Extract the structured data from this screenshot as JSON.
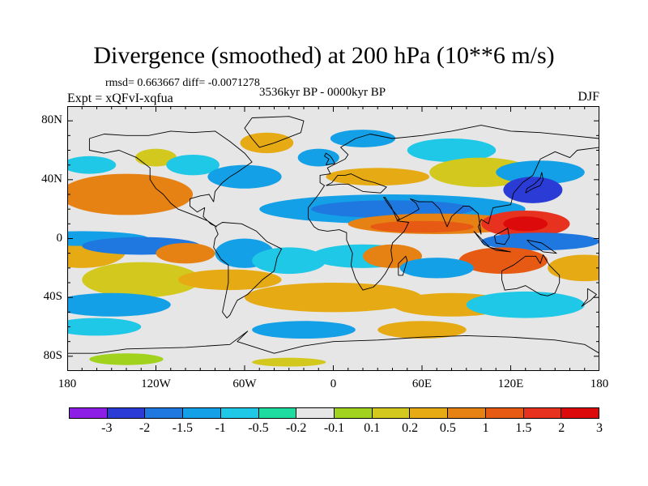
{
  "header": {
    "title": "Divergence (smoothed) at 200 hPa (10**6 m/s)",
    "stats": "rmsd= 0.663667 diff= -0.0071278",
    "experiment": "Expt = xQFvI-xqfua",
    "period": "3536kyr BP - 0000kyr BP",
    "season": "DJF"
  },
  "axes": {
    "lat_labels": [
      "80N",
      "40N",
      "0",
      "40S",
      "80S"
    ],
    "lat_values": [
      80,
      40,
      0,
      -40,
      -80
    ],
    "lon_labels": [
      "180",
      "120W",
      "60W",
      "0",
      "60E",
      "120E",
      "180"
    ],
    "lon_values": [
      -180,
      -120,
      -60,
      0,
      60,
      120,
      180
    ],
    "lat_range": [
      -90,
      90
    ],
    "lon_range": [
      -180,
      180
    ]
  },
  "colorbar": {
    "colors": [
      "#8c1ee6",
      "#2b3cd6",
      "#1e78e0",
      "#14a0e6",
      "#1ec8e6",
      "#1edca0",
      "#e6e6e6",
      "#a0d21e",
      "#d2c81e",
      "#e6aa14",
      "#e68214",
      "#e65a14",
      "#e6321e",
      "#dc0a0a"
    ],
    "labels": [
      "-3",
      "-2",
      "-1.5",
      "-1",
      "-0.5",
      "-0.2",
      "-0.1",
      "0.1",
      "0.2",
      "0.5",
      "1",
      "1.5",
      "2",
      "3"
    ]
  },
  "field_blobs": [
    {
      "lon": -150,
      "lat": 32,
      "rx": 25,
      "ry": 10,
      "level": 12
    },
    {
      "lon": -140,
      "lat": 30,
      "rx": 45,
      "ry": 14,
      "level": 10
    },
    {
      "lon": -165,
      "lat": 50,
      "rx": 18,
      "ry": 6,
      "level": 4
    },
    {
      "lon": -120,
      "lat": 55,
      "rx": 14,
      "ry": 6,
      "level": 8
    },
    {
      "lon": -95,
      "lat": 50,
      "rx": 18,
      "ry": 7,
      "level": 4
    },
    {
      "lon": -60,
      "lat": 42,
      "rx": 25,
      "ry": 8,
      "level": 3
    },
    {
      "lon": -45,
      "lat": 65,
      "rx": 18,
      "ry": 7,
      "level": 9
    },
    {
      "lon": -10,
      "lat": 55,
      "rx": 14,
      "ry": 6,
      "level": 3
    },
    {
      "lon": 20,
      "lat": 68,
      "rx": 22,
      "ry": 6,
      "level": 3
    },
    {
      "lon": 80,
      "lat": 60,
      "rx": 30,
      "ry": 8,
      "level": 4
    },
    {
      "lon": 100,
      "lat": 45,
      "rx": 35,
      "ry": 10,
      "level": 8
    },
    {
      "lon": 140,
      "lat": 45,
      "rx": 30,
      "ry": 8,
      "level": 3
    },
    {
      "lon": 135,
      "lat": 33,
      "rx": 20,
      "ry": 9,
      "level": 1
    },
    {
      "lon": 30,
      "lat": 42,
      "rx": 35,
      "ry": 6,
      "level": 9
    },
    {
      "lon": 40,
      "lat": 20,
      "rx": 90,
      "ry": 10,
      "level": 3
    },
    {
      "lon": 40,
      "lat": 20,
      "rx": 55,
      "ry": 6,
      "level": 2
    },
    {
      "lon": 70,
      "lat": 10,
      "rx": 60,
      "ry": 7,
      "level": 10
    },
    {
      "lon": 60,
      "lat": 8,
      "rx": 35,
      "ry": 4,
      "level": 11
    },
    {
      "lon": 130,
      "lat": 10,
      "rx": 30,
      "ry": 9,
      "level": 12
    },
    {
      "lon": 130,
      "lat": 10,
      "rx": 15,
      "ry": 5,
      "level": 13
    },
    {
      "lon": 140,
      "lat": -2,
      "rx": 40,
      "ry": 6,
      "level": 2
    },
    {
      "lon": 115,
      "lat": -15,
      "rx": 30,
      "ry": 9,
      "level": 11
    },
    {
      "lon": 170,
      "lat": -20,
      "rx": 25,
      "ry": 9,
      "level": 9
    },
    {
      "lon": -170,
      "lat": -8,
      "rx": 30,
      "ry": 12,
      "level": 9
    },
    {
      "lon": -170,
      "lat": 0,
      "rx": 45,
      "ry": 5,
      "level": 3
    },
    {
      "lon": -130,
      "lat": -5,
      "rx": 40,
      "ry": 6,
      "level": 2
    },
    {
      "lon": -100,
      "lat": -10,
      "rx": 20,
      "ry": 7,
      "level": 10
    },
    {
      "lon": -130,
      "lat": -28,
      "rx": 40,
      "ry": 12,
      "level": 8
    },
    {
      "lon": -60,
      "lat": -10,
      "rx": 20,
      "ry": 10,
      "level": 3
    },
    {
      "lon": -70,
      "lat": -28,
      "rx": 35,
      "ry": 7,
      "level": 9
    },
    {
      "lon": -30,
      "lat": -15,
      "rx": 25,
      "ry": 9,
      "level": 4
    },
    {
      "lon": 20,
      "lat": -12,
      "rx": 35,
      "ry": 8,
      "level": 4
    },
    {
      "lon": 40,
      "lat": -12,
      "rx": 20,
      "ry": 8,
      "level": 10
    },
    {
      "lon": 70,
      "lat": -20,
      "rx": 25,
      "ry": 7,
      "level": 3
    },
    {
      "lon": 0,
      "lat": -40,
      "rx": 60,
      "ry": 10,
      "level": 9
    },
    {
      "lon": 80,
      "lat": -45,
      "rx": 40,
      "ry": 8,
      "level": 9
    },
    {
      "lon": 130,
      "lat": -45,
      "rx": 40,
      "ry": 9,
      "level": 4
    },
    {
      "lon": -150,
      "lat": -45,
      "rx": 40,
      "ry": 8,
      "level": 3
    },
    {
      "lon": -160,
      "lat": -60,
      "rx": 30,
      "ry": 6,
      "level": 4
    },
    {
      "lon": -20,
      "lat": -62,
      "rx": 35,
      "ry": 6,
      "level": 3
    },
    {
      "lon": 60,
      "lat": -62,
      "rx": 30,
      "ry": 6,
      "level": 9
    },
    {
      "lon": -140,
      "lat": -82,
      "rx": 25,
      "ry": 4,
      "level": 7
    },
    {
      "lon": -30,
      "lat": -84,
      "rx": 25,
      "ry": 3,
      "level": 8
    }
  ],
  "coastlines": [
    {
      "name": "north-america",
      "points": [
        [
          -165,
          68
        ],
        [
          -155,
          71
        ],
        [
          -140,
          70
        ],
        [
          -125,
          70
        ],
        [
          -110,
          73
        ],
        [
          -95,
          72
        ],
        [
          -80,
          73
        ],
        [
          -70,
          66
        ],
        [
          -60,
          58
        ],
        [
          -55,
          52
        ],
        [
          -65,
          45
        ],
        [
          -70,
          42
        ],
        [
          -75,
          38
        ],
        [
          -80,
          32
        ],
        [
          -81,
          25
        ],
        [
          -84,
          30
        ],
        [
          -90,
          29
        ],
        [
          -97,
          27
        ],
        [
          -97,
          22
        ],
        [
          -92,
          18
        ],
        [
          -87,
          21
        ],
        [
          -88,
          15
        ],
        [
          -83,
          10
        ],
        [
          -79,
          8
        ],
        [
          -85,
          12
        ],
        [
          -92,
          15
        ],
        [
          -105,
          20
        ],
        [
          -110,
          24
        ],
        [
          -115,
          30
        ],
        [
          -120,
          34
        ],
        [
          -124,
          40
        ],
        [
          -124,
          48
        ],
        [
          -133,
          55
        ],
        [
          -145,
          60
        ],
        [
          -155,
          58
        ],
        [
          -165,
          60
        ],
        [
          -165,
          68
        ]
      ]
    },
    {
      "name": "greenland",
      "points": [
        [
          -55,
          82
        ],
        [
          -30,
          83
        ],
        [
          -20,
          80
        ],
        [
          -22,
          72
        ],
        [
          -40,
          65
        ],
        [
          -50,
          62
        ],
        [
          -55,
          68
        ],
        [
          -60,
          75
        ],
        [
          -55,
          82
        ]
      ]
    },
    {
      "name": "south-america",
      "points": [
        [
          -80,
          8
        ],
        [
          -75,
          11
        ],
        [
          -62,
          10
        ],
        [
          -52,
          5
        ],
        [
          -45,
          -2
        ],
        [
          -35,
          -7
        ],
        [
          -38,
          -13
        ],
        [
          -40,
          -22
        ],
        [
          -48,
          -28
        ],
        [
          -55,
          -35
        ],
        [
          -58,
          -38
        ],
        [
          -65,
          -42
        ],
        [
          -67,
          -46
        ],
        [
          -70,
          -52
        ],
        [
          -72,
          -54
        ],
        [
          -75,
          -50
        ],
        [
          -73,
          -40
        ],
        [
          -71,
          -30
        ],
        [
          -71,
          -18
        ],
        [
          -76,
          -14
        ],
        [
          -81,
          -6
        ],
        [
          -80,
          0
        ],
        [
          -78,
          3
        ],
        [
          -80,
          8
        ]
      ]
    },
    {
      "name": "africa-eurasia",
      "points": [
        [
          -17,
          14
        ],
        [
          -17,
          21
        ],
        [
          -10,
          30
        ],
        [
          -6,
          36
        ],
        [
          -9,
          38
        ],
        [
          -9,
          43
        ],
        [
          -2,
          44
        ],
        [
          -4,
          48
        ],
        [
          2,
          51
        ],
        [
          8,
          54
        ],
        [
          10,
          57
        ],
        [
          5,
          62
        ],
        [
          15,
          68
        ],
        [
          25,
          71
        ],
        [
          40,
          68
        ],
        [
          60,
          70
        ],
        [
          80,
          73
        ],
        [
          100,
          77
        ],
        [
          120,
          73
        ],
        [
          140,
          72
        ],
        [
          160,
          70
        ],
        [
          180,
          68
        ],
        [
          180,
          62
        ],
        [
          165,
          60
        ],
        [
          160,
          55
        ],
        [
          150,
          59
        ],
        [
          140,
          54
        ],
        [
          135,
          43
        ],
        [
          128,
          38
        ],
        [
          122,
          31
        ],
        [
          120,
          23
        ],
        [
          108,
          21
        ],
        [
          105,
          10
        ],
        [
          100,
          13
        ],
        [
          98,
          8
        ],
        [
          100,
          3
        ],
        [
          98,
          17
        ],
        [
          92,
          22
        ],
        [
          88,
          22
        ],
        [
          80,
          15
        ],
        [
          77,
          8
        ],
        [
          72,
          20
        ],
        [
          67,
          25
        ],
        [
          58,
          25
        ],
        [
          52,
          27
        ],
        [
          56,
          24
        ],
        [
          58,
          20
        ],
        [
          53,
          17
        ],
        [
          45,
          13
        ],
        [
          43,
          12
        ],
        [
          51,
          11
        ],
        [
          48,
          5
        ],
        [
          40,
          -3
        ],
        [
          39,
          -8
        ],
        [
          40,
          -15
        ],
        [
          35,
          -24
        ],
        [
          32,
          -28
        ],
        [
          27,
          -33
        ],
        [
          20,
          -35
        ],
        [
          18,
          -32
        ],
        [
          15,
          -27
        ],
        [
          12,
          -18
        ],
        [
          13,
          -10
        ],
        [
          9,
          -1
        ],
        [
          9,
          4
        ],
        [
          4,
          6
        ],
        [
          -4,
          5
        ],
        [
          -10,
          6
        ],
        [
          -13,
          8
        ],
        [
          -17,
          14
        ]
      ]
    },
    {
      "name": "mediterranean",
      "points": [
        [
          -5,
          36
        ],
        [
          5,
          37
        ],
        [
          10,
          37
        ],
        [
          20,
          32
        ],
        [
          32,
          31
        ],
        [
          36,
          35
        ],
        [
          28,
          38
        ],
        [
          20,
          40
        ],
        [
          12,
          44
        ],
        [
          8,
          43
        ],
        [
          3,
          43
        ],
        [
          -1,
          38
        ],
        [
          -5,
          36
        ]
      ]
    },
    {
      "name": "arabia-red-sea",
      "points": [
        [
          35,
          28
        ],
        [
          39,
          22
        ],
        [
          43,
          13
        ],
        [
          45,
          13
        ],
        [
          42,
          17
        ],
        [
          38,
          22
        ],
        [
          34,
          28
        ],
        [
          35,
          28
        ]
      ]
    },
    {
      "name": "australia",
      "points": [
        [
          114,
          -22
        ],
        [
          122,
          -18
        ],
        [
          130,
          -12
        ],
        [
          137,
          -12
        ],
        [
          140,
          -17
        ],
        [
          142,
          -11
        ],
        [
          146,
          -18
        ],
        [
          153,
          -25
        ],
        [
          153,
          -30
        ],
        [
          150,
          -37
        ],
        [
          145,
          -39
        ],
        [
          140,
          -38
        ],
        [
          135,
          -35
        ],
        [
          130,
          -32
        ],
        [
          124,
          -34
        ],
        [
          116,
          -35
        ],
        [
          114,
          -28
        ],
        [
          114,
          -22
        ]
      ]
    },
    {
      "name": "madagascar",
      "points": [
        [
          44,
          -25
        ],
        [
          47,
          -25
        ],
        [
          50,
          -15
        ],
        [
          49,
          -12
        ],
        [
          44,
          -17
        ],
        [
          44,
          -25
        ]
      ]
    },
    {
      "name": "japan",
      "points": [
        [
          130,
          31
        ],
        [
          135,
          34
        ],
        [
          140,
          36
        ],
        [
          142,
          40
        ],
        [
          141,
          45
        ],
        [
          140,
          41
        ],
        [
          136,
          37
        ],
        [
          131,
          34
        ],
        [
          130,
          31
        ]
      ]
    },
    {
      "name": "uk",
      "points": [
        [
          -5,
          50
        ],
        [
          1,
          51
        ],
        [
          0,
          53
        ],
        [
          -2,
          56
        ],
        [
          -5,
          58
        ],
        [
          -6,
          56
        ],
        [
          -3,
          54
        ],
        [
          -5,
          50
        ]
      ]
    },
    {
      "name": "indonesia",
      "points": [
        [
          95,
          5
        ],
        [
          106,
          -6
        ],
        [
          115,
          -8
        ],
        [
          120,
          -9
        ],
        [
          110,
          -8
        ],
        [
          102,
          -4
        ],
        [
          95,
          5
        ]
      ]
    },
    {
      "name": "borneo",
      "points": [
        [
          109,
          2
        ],
        [
          118,
          7
        ],
        [
          119,
          1
        ],
        [
          116,
          -4
        ],
        [
          110,
          -3
        ],
        [
          109,
          2
        ]
      ]
    },
    {
      "name": "new-guinea",
      "points": [
        [
          131,
          -1
        ],
        [
          141,
          -3
        ],
        [
          151,
          -10
        ],
        [
          142,
          -9
        ],
        [
          134,
          -4
        ],
        [
          131,
          -1
        ]
      ]
    },
    {
      "name": "new-zealand",
      "points": [
        [
          172,
          -34
        ],
        [
          178,
          -38
        ],
        [
          174,
          -42
        ],
        [
          168,
          -46
        ],
        [
          172,
          -41
        ],
        [
          172,
          -34
        ]
      ]
    },
    {
      "name": "antarctica",
      "points": [
        [
          -180,
          -78
        ],
        [
          -160,
          -78
        ],
        [
          -140,
          -75
        ],
        [
          -100,
          -74
        ],
        [
          -70,
          -72
        ],
        [
          -58,
          -63
        ],
        [
          -65,
          -70
        ],
        [
          -40,
          -78
        ],
        [
          -20,
          -73
        ],
        [
          0,
          -70
        ],
        [
          30,
          -69
        ],
        [
          60,
          -67
        ],
        [
          90,
          -66
        ],
        [
          120,
          -67
        ],
        [
          150,
          -69
        ],
        [
          170,
          -72
        ],
        [
          180,
          -78
        ]
      ]
    }
  ]
}
